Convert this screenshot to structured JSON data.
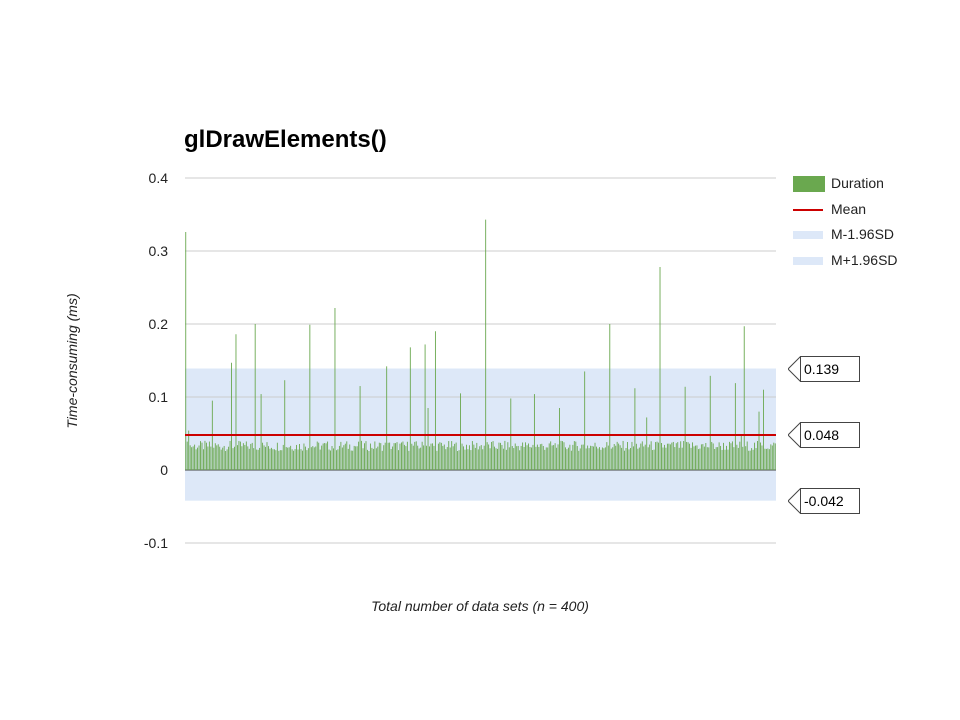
{
  "chart_data": {
    "type": "bar",
    "title": "glDrawElements()",
    "xlabel": "Total number of data sets (n = 400)",
    "ylabel": "Time-consuming (ms)",
    "ylim": [
      -0.1,
      0.4
    ],
    "yticks": [
      "-0.1",
      "0",
      "0.1",
      "0.2",
      "0.3",
      "0.4"
    ],
    "n": 400,
    "series": [
      {
        "name": "Duration",
        "color": "#6aa84f",
        "baseline": 0.033,
        "variation": 0.007,
        "spikes": [
          [
            0,
            0.326
          ],
          [
            2,
            0.054
          ],
          [
            18,
            0.095
          ],
          [
            31,
            0.147
          ],
          [
            34,
            0.186
          ],
          [
            47,
            0.2
          ],
          [
            51,
            0.104
          ],
          [
            67,
            0.123
          ],
          [
            84,
            0.199
          ],
          [
            101,
            0.222
          ],
          [
            118,
            0.115
          ],
          [
            136,
            0.142
          ],
          [
            152,
            0.168
          ],
          [
            162,
            0.172
          ],
          [
            164,
            0.085
          ],
          [
            169,
            0.19
          ],
          [
            186,
            0.105
          ],
          [
            203,
            0.343
          ],
          [
            220,
            0.098
          ],
          [
            236,
            0.104
          ],
          [
            253,
            0.085
          ],
          [
            270,
            0.135
          ],
          [
            287,
            0.2
          ],
          [
            304,
            0.112
          ],
          [
            312,
            0.072
          ],
          [
            321,
            0.278
          ],
          [
            338,
            0.114
          ],
          [
            355,
            0.129
          ],
          [
            372,
            0.119
          ],
          [
            376,
            0.048
          ],
          [
            378,
            0.197
          ],
          [
            388,
            0.08
          ],
          [
            391,
            0.11
          ]
        ]
      },
      {
        "name": "Mean",
        "color": "#cc0000",
        "value": 0.048
      },
      {
        "name": "M-1.96SD",
        "color": "#dde8f8",
        "value": -0.042
      },
      {
        "name": "M+1.96SD",
        "color": "#dde8f8",
        "value": 0.139
      }
    ],
    "annotations": [
      "0.139",
      "0.048",
      "-0.042"
    ],
    "legend_position": "right",
    "grid": true
  }
}
